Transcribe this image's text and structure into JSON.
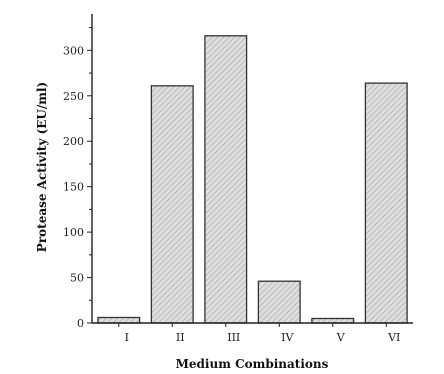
{
  "chart_data": {
    "type": "bar",
    "title": "",
    "xlabel": "Medium Combinations",
    "ylabel": "Protease Activity (EU/ml)",
    "categories": [
      "I",
      "II",
      "III",
      "IV",
      "V",
      "VI"
    ],
    "values": [
      6,
      261,
      316,
      46,
      5,
      264
    ],
    "ylim": [
      0,
      340
    ],
    "yticks": [
      0,
      50,
      100,
      150,
      200,
      250,
      300
    ],
    "grid": false,
    "legend": "none",
    "bar_fill": "#d9d9d9",
    "bar_stroke": "#333333",
    "bar_pattern": "diagonal-hatch"
  }
}
